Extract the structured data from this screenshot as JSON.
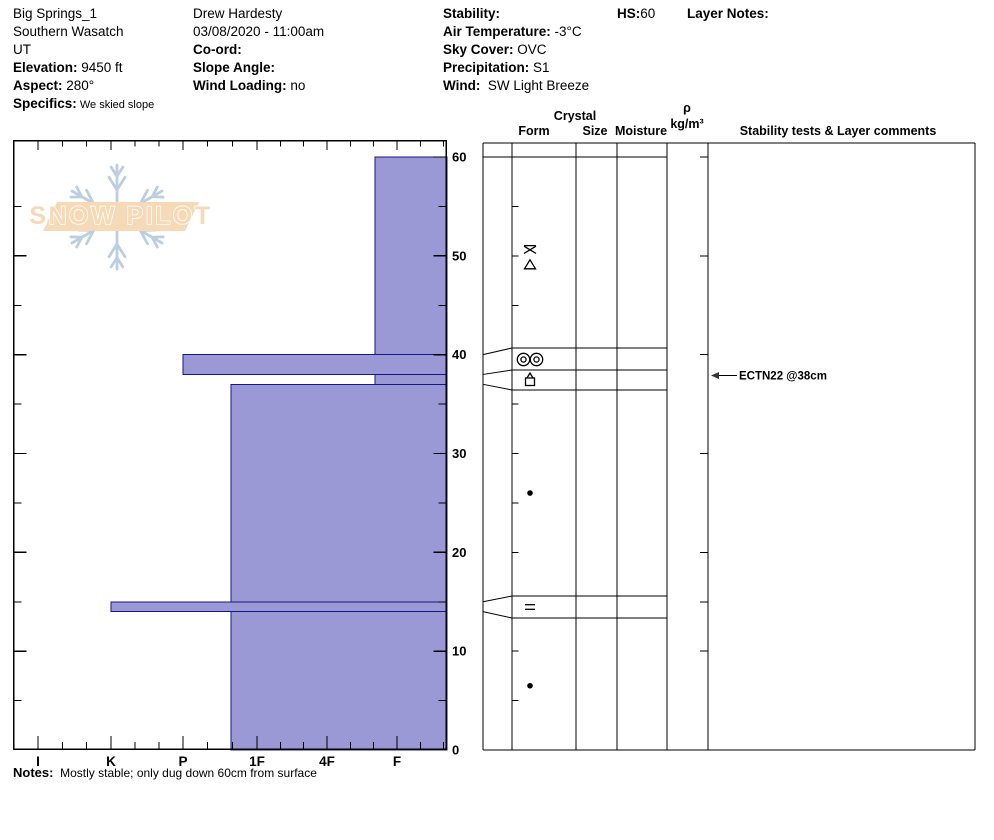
{
  "header": {
    "site": {
      "lines": [
        "Big Springs_1",
        "Southern Wasatch",
        "UT"
      ],
      "fields": [
        {
          "label": "Elevation:",
          "value": "9450 ft"
        },
        {
          "label": "Aspect:",
          "value": "280°"
        },
        {
          "label": "Specifics:",
          "value": "We skied slope",
          "small": true
        }
      ]
    },
    "observer": {
      "lines": [
        "Drew Hardesty",
        "03/08/2020 - 11:00am"
      ],
      "fields": [
        {
          "label": "Co-ord:",
          "value": ""
        },
        {
          "label": "Slope Angle:",
          "value": ""
        },
        {
          "label": "Wind Loading:",
          "value": "no"
        }
      ]
    },
    "weather": {
      "lines": [],
      "fields": [
        {
          "label": "Stability:",
          "value": ""
        },
        {
          "label": "Air Temperature:",
          "value": "-3°C"
        },
        {
          "label": "Sky Cover:",
          "value": "OVC"
        },
        {
          "label": "Precipitation:",
          "value": "S1"
        },
        {
          "label": "Wind:",
          "value": " SW Light Breeze"
        }
      ]
    },
    "hs": {
      "label": "HS:",
      "value": "60"
    },
    "layer_notes_label": "Layer Notes:"
  },
  "logo": {
    "text": "SNOW PILOT"
  },
  "panel": {
    "headers": {
      "crystal": "Crystal",
      "form": "Form",
      "size": "Size",
      "moisture": "Moisture",
      "rho": "ρ",
      "rho_unit": "kg/m³",
      "comments": "Stability tests & Layer comments"
    }
  },
  "chart_data": {
    "type": "bar",
    "title": "Snow profile: hand hardness vs depth",
    "orientation": "horizontal bars, depth vertical (0 cm at bottom, 60 cm snow surface at top)",
    "depth_axis": {
      "unit": "cm",
      "min": 0,
      "max": 60,
      "tick_labels": [
        "60",
        "50",
        "40",
        "30",
        "20",
        "10",
        "0"
      ],
      "minor_tick_step": 5
    },
    "hardness_axis": {
      "tick_labels": [
        "I",
        "K",
        "P",
        "1F",
        "4F",
        "F"
      ],
      "note": "hardest (I) at left, softest (F) at right; bars grow from right edge"
    },
    "total_depth_hs": 60,
    "layers": [
      {
        "top_cm": 60,
        "bottom_cm": 40,
        "hardness": "F+",
        "symbol": "stellar-and-graupel",
        "symbol_depth_cm": 50
      },
      {
        "top_cm": 40,
        "bottom_cm": 38,
        "hardness": "P",
        "symbol": "double-ringed-circles"
      },
      {
        "top_cm": 38,
        "bottom_cm": 37,
        "hardness": "F+",
        "symbol": "square-with-peak"
      },
      {
        "top_cm": 37,
        "bottom_cm": 15,
        "hardness": "1F+",
        "symbol": "filled-dot",
        "symbol_depth_cm": 26
      },
      {
        "top_cm": 15,
        "bottom_cm": 14,
        "hardness": "K",
        "symbol": "double-horizontal-lines"
      },
      {
        "top_cm": 14,
        "bottom_cm": 0,
        "hardness": "1F+",
        "symbol": "filled-dot",
        "symbol_depth_cm": 6.5
      }
    ],
    "annotations": [
      {
        "text": "ECTN22 @38cm",
        "depth_cm": 38
      }
    ],
    "legend_position": "none",
    "grid": false,
    "colors": {
      "bar_fill": "#9a99d6",
      "bar_stroke": "#16168c",
      "line": "#000000",
      "logo_snowflake": "#bccfe0",
      "logo_band": "#f6d9b6"
    }
  },
  "notes": {
    "label": "Notes:",
    "value": "Mostly stable; only dug down 60cm from surface"
  }
}
